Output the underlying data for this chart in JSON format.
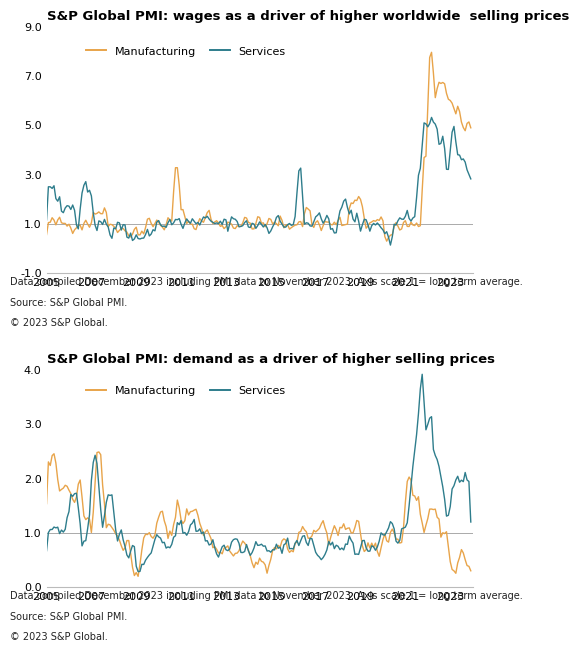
{
  "chart1_title": "S&P Global PMI: wages as a driver of higher worldwide  selling prices",
  "chart2_title": "S&P Global PMI: demand as a driver of higher selling prices",
  "footnote1_line1": "Data compiled December 2023 including PMI data to November 2023. Axis scale 1 = long term average.",
  "footnote1_line2": "Source: S&P Global PMI.",
  "footnote1_line3": "© 2023 S&P Global.",
  "footnote2_line1": "Data compiled December 2023 including PMI data to November 2023. Axis scale 1 = long term average.",
  "footnote2_line2": "Source: S&P Global PMI.",
  "footnote2_line3": "© 2023 S&P Global.",
  "manufacturing_color": "#E8A44A",
  "services_color": "#2E7D8C",
  "reference_line_color": "#aaaaaa",
  "chart1_ylim": [
    -1.0,
    9.0
  ],
  "chart1_yticks": [
    -1.0,
    1.0,
    3.0,
    5.0,
    7.0,
    9.0
  ],
  "chart1_ytick_labels": [
    "-1.0",
    "1.0",
    "3.0",
    "5.0",
    "7.0",
    "9.0"
  ],
  "chart2_ylim": [
    0.0,
    4.0
  ],
  "chart2_yticks": [
    0.0,
    1.0,
    2.0,
    3.0,
    4.0
  ],
  "chart2_ytick_labels": [
    "0.0",
    "1.0",
    "2.0",
    "3.0",
    "4.0"
  ],
  "xmin": 2005.0,
  "xmax": 2024.0,
  "xticks": [
    2005,
    2007,
    2009,
    2011,
    2013,
    2015,
    2017,
    2019,
    2021,
    2023
  ],
  "legend_labels": [
    "Manufacturing",
    "Services"
  ],
  "background_color": "#ffffff",
  "title_fontsize": 9.5,
  "axis_fontsize": 8.0,
  "legend_fontsize": 8.0,
  "footnote_fontsize": 7.0,
  "linewidth": 1.0
}
